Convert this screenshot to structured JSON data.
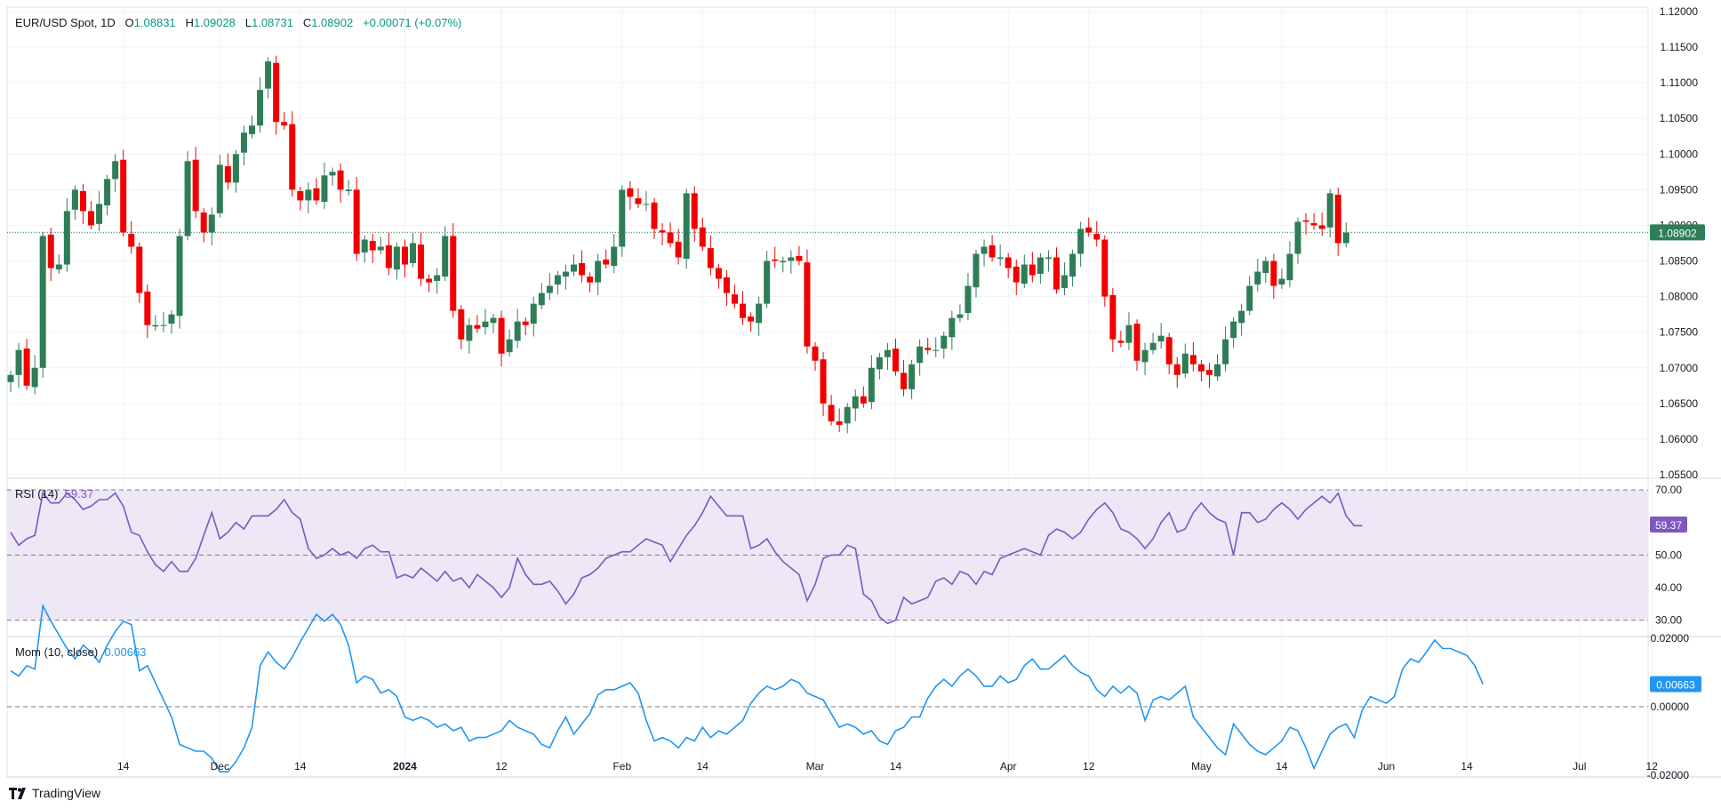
{
  "header": {
    "symbol": "EUR/USD Spot, 1D",
    "o_label": "O",
    "o_value": "1.08831",
    "h_label": "H",
    "h_value": "1.09028",
    "l_label": "L",
    "l_value": "1.08731",
    "c_label": "C",
    "c_value": "1.08902",
    "change": "+0.00071 (+0.07%)"
  },
  "rsi_header": {
    "label": "RSI (14)",
    "value": "59.37"
  },
  "mom_header": {
    "label": "Mom (10, close)",
    "value": "0.00663"
  },
  "brand": "TradingView",
  "colors": {
    "up": "#2e7d57",
    "down": "#f20000",
    "rsi": "#7e57c2",
    "mom": "#2196f3",
    "price_tag": "#2e7d57",
    "rsi_band": "#ede7f6"
  },
  "chart_data": [
    {
      "type": "candlestick",
      "title": "EUR/USD Spot, 1D",
      "ylim": [
        1.055,
        1.12
      ],
      "yticks": [
        "1.12000",
        "1.11500",
        "1.11000",
        "1.10500",
        "1.10000",
        "1.09500",
        "1.09000",
        "1.08500",
        "1.08000",
        "1.07500",
        "1.07000",
        "1.06500",
        "1.06000",
        "1.05500"
      ],
      "last_price": "1.08902",
      "xticks": [
        {
          "label": "14",
          "x": 14,
          "bold": false
        },
        {
          "label": "Dec",
          "x": 26,
          "bold": false
        },
        {
          "label": "14",
          "x": 36,
          "bold": false
        },
        {
          "label": "2024",
          "x": 49,
          "bold": true
        },
        {
          "label": "12",
          "x": 61,
          "bold": false
        },
        {
          "label": "Feb",
          "x": 76,
          "bold": false
        },
        {
          "label": "14",
          "x": 86,
          "bold": false
        },
        {
          "label": "Mar",
          "x": 100,
          "bold": false
        },
        {
          "label": "14",
          "x": 110,
          "bold": false
        },
        {
          "label": "Apr",
          "x": 124,
          "bold": false
        },
        {
          "label": "12",
          "x": 134,
          "bold": false
        },
        {
          "label": "May",
          "x": 148,
          "bold": false
        },
        {
          "label": "14",
          "x": 158,
          "bold": false
        },
        {
          "label": "Jun",
          "x": 171,
          "bold": false
        },
        {
          "label": "14",
          "x": 181,
          "bold": false
        },
        {
          "label": "Jul",
          "x": 195,
          "bold": false
        },
        {
          "label": "12",
          "x": 204,
          "bold": false
        }
      ],
      "closes": [
        1.069,
        1.0725,
        1.0675,
        1.07,
        1.0885,
        1.084,
        1.0845,
        1.092,
        1.095,
        1.092,
        1.09,
        1.093,
        1.0965,
        1.099,
        1.089,
        1.087,
        1.0805,
        1.076,
        1.076,
        1.076,
        1.0775,
        1.0885,
        1.099,
        1.092,
        1.089,
        1.0915,
        1.0985,
        1.096,
        1.1,
        1.103,
        1.104,
        1.109,
        1.113,
        1.1045,
        1.104,
        1.095,
        1.0935,
        1.095,
        1.0935,
        1.097,
        1.0975,
        1.095,
        1.095,
        1.086,
        1.088,
        1.0865,
        1.087,
        1.084,
        1.087,
        1.0845,
        1.0875,
        1.0825,
        1.082,
        1.083,
        1.0885,
        1.078,
        1.074,
        1.076,
        1.0755,
        1.0765,
        1.077,
        1.072,
        1.074,
        1.0765,
        1.076,
        1.079,
        1.0805,
        1.0815,
        1.083,
        1.0835,
        1.0845,
        1.083,
        1.082,
        1.085,
        1.0845,
        1.087,
        1.095,
        1.094,
        1.093,
        1.093,
        1.0895,
        1.089,
        1.0875,
        1.0855,
        1.0945,
        1.0895,
        1.087,
        1.084,
        1.0825,
        1.0805,
        1.079,
        1.077,
        1.0765,
        1.079,
        1.085,
        1.085,
        1.085,
        1.0855,
        1.085,
        1.073,
        1.071,
        1.065,
        1.0625,
        1.062,
        1.0645,
        1.066,
        1.065,
        1.07,
        1.0715,
        1.0725,
        1.0695,
        1.067,
        1.0705,
        1.073,
        1.0725,
        1.0725,
        1.0745,
        1.077,
        1.0775,
        1.0815,
        1.086,
        1.087,
        1.0855,
        1.0855,
        1.084,
        1.082,
        1.0845,
        1.083,
        1.0855,
        1.0855,
        1.081,
        1.083,
        1.086,
        1.0895,
        1.089,
        1.088,
        1.08,
        1.074,
        1.0735,
        1.076,
        1.071,
        1.0725,
        1.0735,
        1.0745,
        1.0705,
        1.069,
        1.072,
        1.0705,
        1.0695,
        1.069,
        1.0705,
        1.074,
        1.0765,
        1.078,
        1.0815,
        1.0835,
        1.085,
        1.0815,
        1.0825,
        1.086,
        1.0905,
        1.0905,
        1.09,
        1.0895,
        1.0945,
        1.0875,
        1.089
      ],
      "series": [
        {
          "name": "EUR/USD Spot",
          "type": "candlestick"
        }
      ]
    },
    {
      "type": "line",
      "title": "RSI (14)",
      "ylim": [
        25,
        73
      ],
      "levels": [
        70,
        50,
        30
      ],
      "yticks": [
        "70.00",
        "50.00",
        "40.00",
        "30.00"
      ],
      "last_value": "59.37",
      "values": [
        57,
        53,
        55,
        56,
        69,
        66,
        66,
        69,
        67,
        64,
        65,
        67,
        67,
        69,
        65,
        57,
        56,
        51,
        47,
        45,
        48,
        45,
        45,
        49,
        56,
        63,
        55,
        57,
        60,
        58,
        62,
        62,
        62,
        64,
        67,
        63,
        61,
        52,
        49,
        50,
        52,
        50,
        51,
        49,
        52,
        53,
        51,
        51,
        43,
        44,
        43,
        46,
        44,
        42,
        45,
        42,
        43,
        40,
        44,
        42,
        40,
        37,
        40,
        49,
        44,
        41,
        41,
        42,
        39,
        35,
        38,
        43,
        44,
        46,
        49,
        50,
        51,
        51,
        53,
        55,
        54,
        53,
        48,
        52,
        56,
        59,
        63,
        68,
        65,
        62,
        62,
        62,
        52,
        53,
        55,
        51,
        48,
        46,
        44,
        36,
        41,
        49,
        50,
        50,
        53,
        52,
        38,
        36,
        31,
        29,
        30,
        37,
        35,
        36,
        37,
        42,
        43,
        41,
        45,
        44,
        41,
        45,
        44,
        49,
        50,
        51,
        52,
        51,
        50,
        56,
        58,
        57,
        55,
        57,
        61,
        64,
        66,
        63,
        58,
        57,
        55,
        52,
        55,
        60,
        63,
        57,
        58,
        63,
        66,
        63,
        61,
        60,
        50,
        63,
        63,
        60,
        61,
        64,
        66,
        64,
        61,
        64,
        66,
        68,
        66,
        69,
        62,
        59,
        59
      ]
    },
    {
      "type": "line",
      "title": "Mom (10, close)",
      "ylim": [
        -0.02,
        0.02
      ],
      "yticks": [
        "0.02000",
        "0.00000",
        "-0.02000"
      ],
      "last_value": "0.00663",
      "values": [
        0.0105,
        0.009,
        0.012,
        0.011,
        0.0295,
        0.025,
        0.021,
        0.017,
        0.014,
        0.018,
        0.016,
        0.013,
        0.018,
        0.022,
        0.025,
        0.024,
        0.0105,
        0.012,
        0.007,
        0.002,
        -0.003,
        -0.011,
        -0.012,
        -0.013,
        -0.013,
        -0.015,
        -0.019,
        -0.019,
        -0.016,
        -0.012,
        -0.006,
        0.012,
        0.016,
        0.013,
        0.011,
        0.0145,
        0.019,
        0.023,
        0.027,
        0.025,
        0.027,
        0.024,
        0.018,
        0.007,
        0.009,
        0.008,
        0.004,
        0.005,
        0.003,
        -0.003,
        -0.004,
        -0.003,
        -0.004,
        -0.006,
        -0.005,
        -0.007,
        -0.006,
        -0.01,
        -0.009,
        -0.009,
        -0.008,
        -0.007,
        -0.004,
        -0.006,
        -0.007,
        -0.008,
        -0.011,
        -0.012,
        -0.007,
        -0.003,
        -0.008,
        -0.005,
        -0.002,
        0.0035,
        0.005,
        0.005,
        0.006,
        0.007,
        0.004,
        -0.004,
        -0.01,
        -0.009,
        -0.01,
        -0.012,
        -0.009,
        -0.01,
        -0.006,
        -0.009,
        -0.007,
        -0.008,
        -0.006,
        -0.004,
        0.001,
        0.004,
        0.006,
        0.005,
        0.006,
        0.008,
        0.007,
        0.004,
        0.003,
        0.002,
        -0.002,
        -0.006,
        -0.005,
        -0.006,
        -0.008,
        -0.007,
        -0.01,
        -0.011,
        -0.007,
        -0.006,
        -0.003,
        -0.003,
        0.0025,
        0.006,
        0.008,
        0.006,
        0.009,
        0.011,
        0.009,
        0.006,
        0.006,
        0.009,
        0.007,
        0.008,
        0.012,
        0.014,
        0.011,
        0.011,
        0.013,
        0.015,
        0.012,
        0.01,
        0.009,
        0.005,
        0.003,
        0.006,
        0.004,
        0.006,
        0.004,
        -0.004,
        0.002,
        0.003,
        0.002,
        0.004,
        0.006,
        -0.003,
        -0.006,
        -0.009,
        -0.012,
        -0.014,
        -0.005,
        -0.008,
        -0.011,
        -0.013,
        -0.014,
        -0.012,
        -0.01,
        -0.006,
        -0.007,
        -0.012,
        -0.018,
        -0.013,
        -0.008,
        -0.006,
        -0.005,
        -0.009,
        -0.001,
        0.003,
        0.002,
        0.001,
        0.003,
        0.011,
        0.014,
        0.013,
        0.016,
        0.0195,
        0.017,
        0.017,
        0.016,
        0.015,
        0.012,
        0.0066
      ]
    }
  ]
}
